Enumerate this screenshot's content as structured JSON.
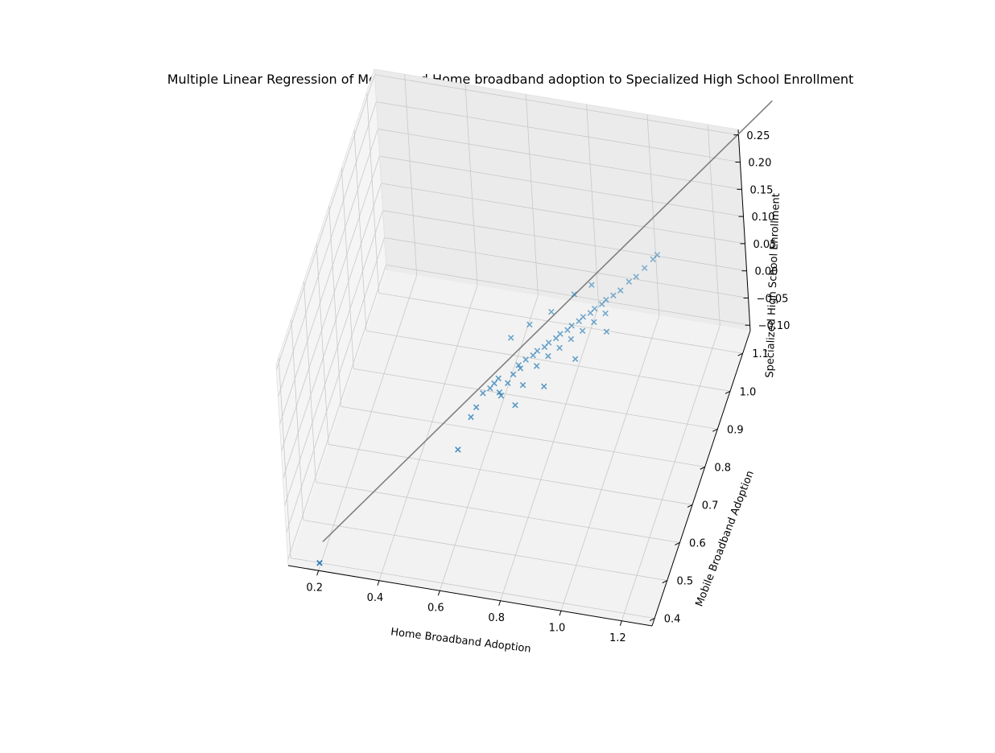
{
  "chart_data": {
    "type": "scatter",
    "title": "Multiple Linear Regression of Mobile and Home broadband adoption to Specialized High School Enrollment",
    "xlabel": "Home Broadband Adoption",
    "ylabel": "Mobile Broadband Adoption",
    "zlabel": "Specialized High School Enrollment",
    "xlim": [
      0.1,
      1.3
    ],
    "ylim": [
      0.38,
      1.16
    ],
    "zlim": [
      -0.11,
      0.26
    ],
    "xticks": [
      "0.2",
      "0.4",
      "0.6",
      "0.8",
      "1.0",
      "1.2"
    ],
    "yticks": [
      "0.4",
      "0.5",
      "0.6",
      "0.7",
      "0.8",
      "0.9",
      "1.0",
      "1.1"
    ],
    "zticks": [
      "−0.10",
      "−0.05",
      "0.00",
      "0.05",
      "0.10",
      "0.15",
      "0.20",
      "0.25"
    ],
    "grid": true,
    "marker": "x",
    "point_color": "#1f77b4",
    "line_color": "#808080",
    "points": [
      {
        "x": 0.21,
        "y": 0.37,
        "z": -0.088
      },
      {
        "x": 0.55,
        "y": 0.66,
        "z": -0.05
      },
      {
        "x": 0.56,
        "y": 0.74,
        "z": -0.045
      },
      {
        "x": 0.57,
        "y": 0.76,
        "z": -0.04
      },
      {
        "x": 0.58,
        "y": 0.79,
        "z": -0.034
      },
      {
        "x": 0.6,
        "y": 0.8,
        "z": -0.03
      },
      {
        "x": 0.61,
        "y": 0.81,
        "z": -0.027
      },
      {
        "x": 0.62,
        "y": 0.82,
        "z": -0.024
      },
      {
        "x": 0.64,
        "y": 0.78,
        "z": -0.02
      },
      {
        "x": 0.65,
        "y": 0.77,
        "z": -0.018
      },
      {
        "x": 0.66,
        "y": 0.8,
        "z": -0.015
      },
      {
        "x": 0.67,
        "y": 0.82,
        "z": -0.012
      },
      {
        "x": 0.68,
        "y": 0.84,
        "z": -0.008
      },
      {
        "x": 0.69,
        "y": 0.83,
        "z": -0.006
      },
      {
        "x": 0.7,
        "y": 0.85,
        "z": -0.003
      },
      {
        "x": 0.71,
        "y": 0.8,
        "z": -0.014
      },
      {
        "x": 0.72,
        "y": 0.86,
        "z": 0.0
      },
      {
        "x": 0.73,
        "y": 0.87,
        "z": 0.002
      },
      {
        "x": 0.74,
        "y": 0.84,
        "z": -0.004
      },
      {
        "x": 0.75,
        "y": 0.88,
        "z": 0.004
      },
      {
        "x": 0.76,
        "y": 0.89,
        "z": 0.006
      },
      {
        "x": 0.77,
        "y": 0.86,
        "z": 0.003
      },
      {
        "x": 0.78,
        "y": 0.9,
        "z": 0.009
      },
      {
        "x": 0.79,
        "y": 0.91,
        "z": 0.011
      },
      {
        "x": 0.8,
        "y": 0.88,
        "z": 0.007
      },
      {
        "x": 0.81,
        "y": 0.92,
        "z": 0.013
      },
      {
        "x": 0.82,
        "y": 0.93,
        "z": 0.015
      },
      {
        "x": 0.83,
        "y": 0.9,
        "z": 0.012
      },
      {
        "x": 0.84,
        "y": 0.94,
        "z": 0.018
      },
      {
        "x": 0.85,
        "y": 0.95,
        "z": 0.02
      },
      {
        "x": 0.86,
        "y": 0.92,
        "z": 0.016
      },
      {
        "x": 0.87,
        "y": 0.96,
        "z": 0.022
      },
      {
        "x": 0.88,
        "y": 0.97,
        "z": 0.024
      },
      {
        "x": 0.89,
        "y": 0.94,
        "z": 0.021
      },
      {
        "x": 0.9,
        "y": 0.98,
        "z": 0.027
      },
      {
        "x": 0.91,
        "y": 0.99,
        "z": 0.029
      },
      {
        "x": 0.92,
        "y": 0.96,
        "z": 0.026
      },
      {
        "x": 0.93,
        "y": 1.0,
        "z": 0.032
      },
      {
        "x": 0.95,
        "y": 1.01,
        "z": 0.036
      },
      {
        "x": 0.97,
        "y": 1.03,
        "z": 0.04
      },
      {
        "x": 0.99,
        "y": 1.04,
        "z": 0.044
      },
      {
        "x": 1.01,
        "y": 1.06,
        "z": 0.048
      },
      {
        "x": 0.85,
        "y": 1.02,
        "z": 0.03
      },
      {
        "x": 0.8,
        "y": 1.0,
        "z": 0.022
      },
      {
        "x": 0.74,
        "y": 0.96,
        "z": 0.012
      },
      {
        "x": 0.68,
        "y": 0.93,
        "z": 0.004
      },
      {
        "x": 0.63,
        "y": 0.9,
        "z": -0.004
      },
      {
        "x": 0.7,
        "y": 0.76,
        "z": -0.024
      },
      {
        "x": 0.78,
        "y": 0.8,
        "z": -0.01
      },
      {
        "x": 0.86,
        "y": 0.86,
        "z": 0.006
      },
      {
        "x": 0.94,
        "y": 0.92,
        "z": 0.022
      },
      {
        "x": 1.03,
        "y": 1.08,
        "z": 0.052
      },
      {
        "x": 1.04,
        "y": 1.09,
        "z": 0.054
      }
    ],
    "regression_line": [
      {
        "x": 0.21,
        "y": 0.4,
        "z": -0.07
      },
      {
        "x": 1.35,
        "y": 1.3,
        "z": 0.22
      }
    ]
  }
}
